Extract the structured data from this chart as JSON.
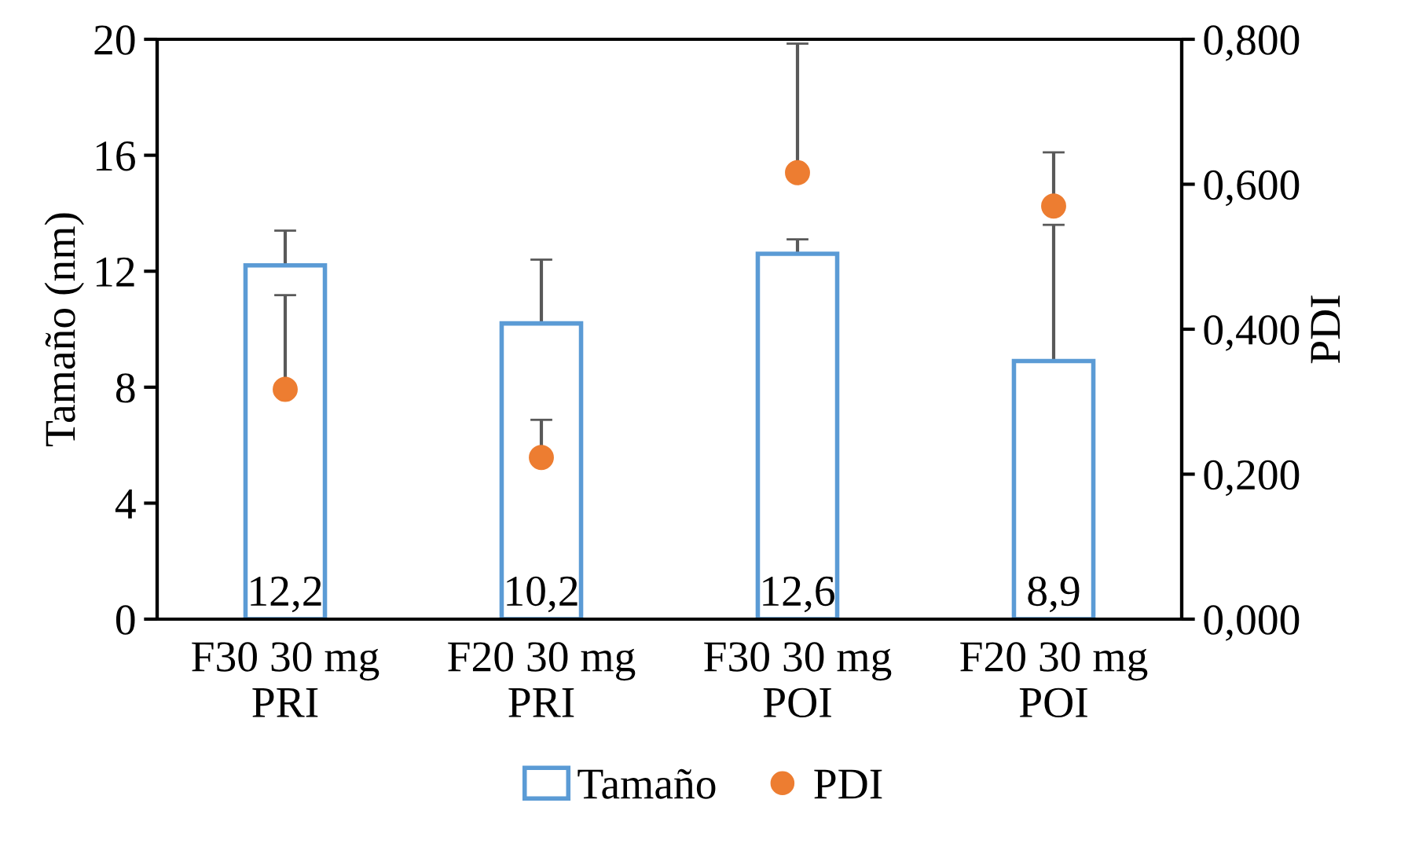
{
  "chart_data": {
    "type": "bar",
    "ylabel": "Tamaño (nm)",
    "y2label": "PDI",
    "categories": [
      "F30 30 mg\nPRI",
      "F20 30 mg\nPRI",
      "F30 30 mg\nPOI",
      "F20 30 mg\nPOI"
    ],
    "series": [
      {
        "name": "Tamaño",
        "color": "#5b9bd5",
        "values": [
          12.2,
          10.2,
          12.6,
          8.9
        ],
        "errors": [
          [
            12.2,
            13.4
          ],
          [
            10.2,
            12.4
          ],
          [
            12.6,
            13.1
          ],
          [
            8.9,
            13.6
          ]
        ],
        "value_labels": [
          "12,2",
          "10,2",
          "12,6",
          "8,9"
        ]
      },
      {
        "name": "PDI",
        "type": "scatter",
        "axis": "y2",
        "color": "#ed7d31",
        "marker": "circle",
        "values": [
          0.317,
          0.223,
          0.616,
          0.57
        ],
        "errors": [
          [
            0.317,
            0.447
          ],
          [
            0.223,
            0.275
          ],
          [
            0.616,
            0.794
          ],
          [
            0.57,
            0.644
          ]
        ]
      }
    ],
    "ylim": [
      0,
      20
    ],
    "yticks": [
      0,
      4,
      8,
      12,
      16,
      20
    ],
    "y2lim": [
      0,
      0.8
    ],
    "y2ticks": [
      {
        "value": 0,
        "label": "0,000"
      },
      {
        "value": 0.2,
        "label": "0,200"
      },
      {
        "value": 0.4,
        "label": "0,400"
      },
      {
        "value": 0.6,
        "label": "0,600"
      },
      {
        "value": 0.8,
        "label": "0,800"
      }
    ],
    "grid": false,
    "legend": "bottom"
  }
}
